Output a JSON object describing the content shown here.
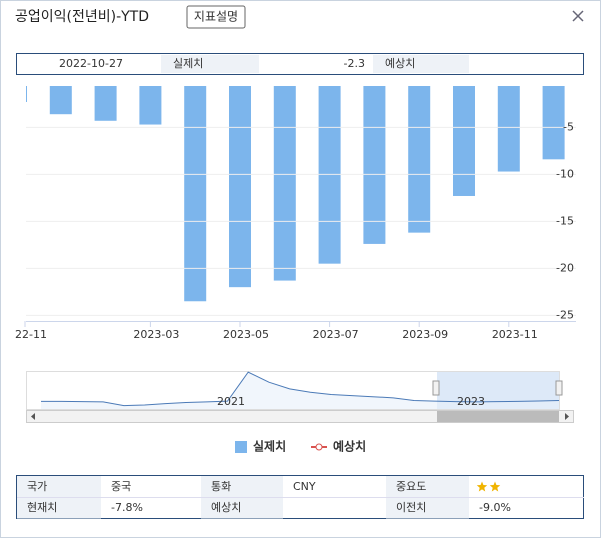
{
  "header": {
    "title": "공업이익(전년비)-YTD",
    "button": "지표설명"
  },
  "info": {
    "date": "2022-10-27",
    "actual_label": "실제치",
    "actual": -2.3,
    "forecast_label": "예상치"
  },
  "chart_data": {
    "type": "bar",
    "categories": [
      "22-11",
      null,
      null,
      "2023-03",
      null,
      "2023-05",
      null,
      "2023-07",
      null,
      "2023-09",
      null,
      "2023-11",
      null
    ],
    "series": [
      {
        "name": "실제치",
        "color": "#7cb5ec",
        "values": [
          -2.3,
          -3.6,
          -4.3,
          -4.7,
          -23.5,
          -22.0,
          -21.3,
          -19.5,
          -17.4,
          -16.2,
          -12.3,
          -9.7,
          -8.4
        ]
      },
      {
        "name": "예상치",
        "color": "#d9534f",
        "values": [
          null,
          null,
          null,
          null,
          null,
          null,
          null,
          null,
          null,
          null,
          null,
          null,
          null
        ]
      }
    ],
    "ylim": [
      -25.6,
      -0.6
    ],
    "yticks": [
      -5,
      -10,
      -15,
      -20,
      -25
    ],
    "navigator": {
      "labels": [
        "2021",
        "2023"
      ],
      "ylim": [
        -30,
        140
      ],
      "values": [
        4,
        4,
        3,
        2,
        -15,
        -12,
        -6,
        -1,
        2,
        5,
        135,
        90,
        60,
        45,
        35,
        30,
        25,
        20,
        8,
        5,
        3,
        2,
        3,
        4,
        6,
        8
      ]
    }
  },
  "table": {
    "rows": [
      [
        "국가",
        "중국",
        "통화",
        "CNY",
        "중요도"
      ],
      [
        "현재치",
        "-7.8%",
        "예상치",
        "이전치",
        "-9.0%"
      ]
    ],
    "importance": 2
  }
}
